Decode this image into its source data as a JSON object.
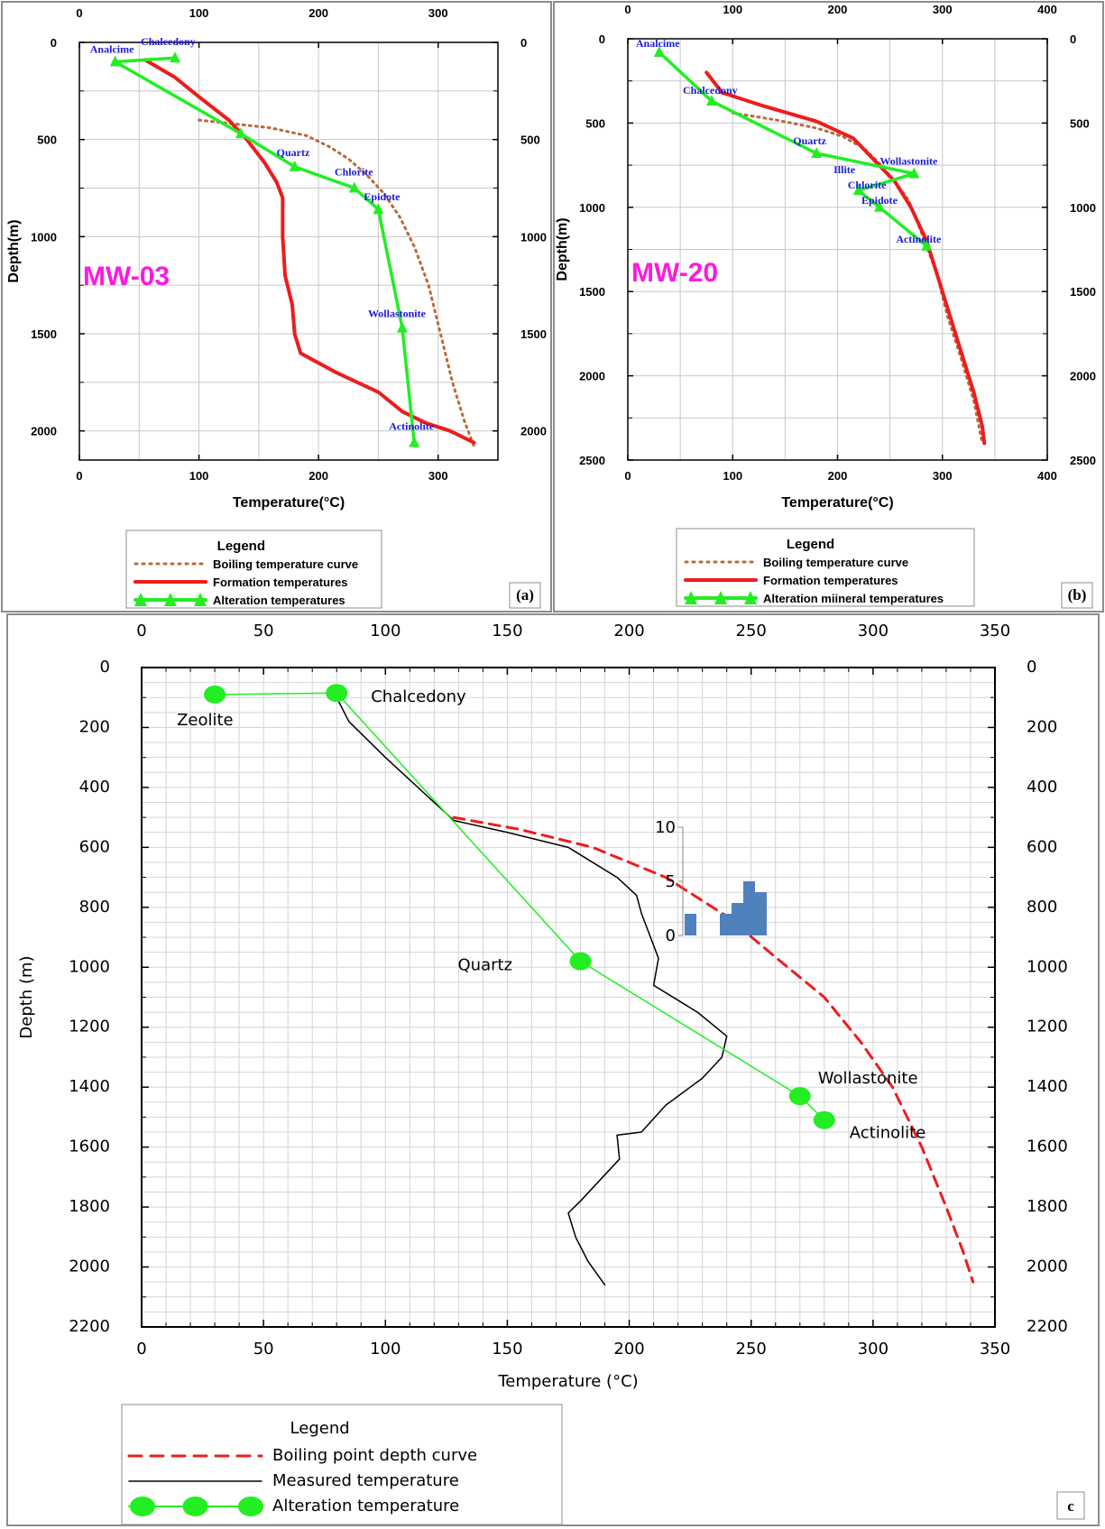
{
  "chart_data": [
    {
      "panel": "(a)",
      "type": "line",
      "well_label": "MW-03",
      "xlabel": "Temperature(°C)",
      "ylabel": "Depth(m)",
      "xlim": [
        0,
        350
      ],
      "ylim": [
        2150,
        0
      ],
      "x_ticks_top": [
        "0",
        "100",
        "200",
        "300"
      ],
      "x_ticks_bottom": [
        "0",
        "100",
        "200",
        "300"
      ],
      "y_ticks": [
        "0",
        "500",
        "1000",
        "1500",
        "2000"
      ],
      "series": [
        {
          "name": "Boiling temperature curve",
          "color": "#b86a3b",
          "style": "dotted",
          "points": [
            [
              100,
              400
            ],
            [
              130,
              420
            ],
            [
              160,
              440
            ],
            [
              190,
              480
            ],
            [
              210,
              540
            ],
            [
              225,
              600
            ],
            [
              240,
              680
            ],
            [
              255,
              780
            ],
            [
              268,
              900
            ],
            [
              280,
              1050
            ],
            [
              292,
              1250
            ],
            [
              302,
              1500
            ],
            [
              312,
              1750
            ],
            [
              322,
              1950
            ],
            [
              330,
              2080
            ]
          ]
        },
        {
          "name": "Formation temperatures",
          "color": "#ee1c1c",
          "style": "solid",
          "points": [
            [
              55,
              90
            ],
            [
              80,
              180
            ],
            [
              100,
              280
            ],
            [
              125,
              400
            ],
            [
              140,
              500
            ],
            [
              155,
              620
            ],
            [
              165,
              720
            ],
            [
              170,
              800
            ],
            [
              170,
              1000
            ],
            [
              172,
              1200
            ],
            [
              178,
              1350
            ],
            [
              180,
              1500
            ],
            [
              185,
              1600
            ],
            [
              215,
              1700
            ],
            [
              250,
              1800
            ],
            [
              270,
              1900
            ],
            [
              290,
              1960
            ],
            [
              310,
              2000
            ],
            [
              330,
              2060
            ]
          ]
        },
        {
          "name": "Alteration temperatures",
          "color": "#22ee22",
          "style": "solid-triangles",
          "points": [
            [
              80,
              80
            ],
            [
              30,
              100
            ],
            [
              135,
              470
            ],
            [
              180,
              640
            ],
            [
              230,
              750
            ],
            [
              250,
              860
            ],
            [
              270,
              1470
            ],
            [
              280,
              2060
            ]
          ]
        }
      ],
      "labels": [
        {
          "text": "Analcime",
          "x": 30,
          "y": 100
        },
        {
          "text": "Chalcedony",
          "x": 80,
          "y": 80
        },
        {
          "text": "Quartz",
          "x": 180,
          "y": 640
        },
        {
          "text": "Chlorite",
          "x": 230,
          "y": 750
        },
        {
          "text": "Epidote",
          "x": 250,
          "y": 860
        },
        {
          "text": "Wollastonite",
          "x": 270,
          "y": 1470
        },
        {
          "text": "Actinolite",
          "x": 280,
          "y": 2060
        }
      ],
      "legend": {
        "title": "Legend",
        "entries": [
          "Boiling temperature curve",
          "Formation temperatures",
          "Alteration temperatures"
        ]
      },
      "panel_label": "(a)"
    },
    {
      "panel": "(b)",
      "type": "line",
      "well_label": "MW-20",
      "xlabel": "Temperature(°C)",
      "ylabel": "Depth(m)",
      "xlim": [
        0,
        400
      ],
      "ylim": [
        2500,
        0
      ],
      "x_ticks_top": [
        "0",
        "100",
        "200",
        "300",
        "400"
      ],
      "x_ticks_bottom": [
        "0",
        "100",
        "200",
        "300",
        "400"
      ],
      "y_ticks": [
        "0",
        "500",
        "1000",
        "1500",
        "2000",
        "2500"
      ],
      "series": [
        {
          "name": "Boiling temperature curve",
          "color": "#b86a3b",
          "style": "dotted",
          "points": [
            [
              100,
              440
            ],
            [
              140,
              480
            ],
            [
              180,
              530
            ],
            [
              205,
              580
            ],
            [
              225,
              650
            ],
            [
              240,
              740
            ],
            [
              255,
              850
            ],
            [
              268,
              960
            ],
            [
              280,
              1150
            ],
            [
              295,
              1400
            ],
            [
              305,
              1650
            ],
            [
              318,
              1900
            ],
            [
              330,
              2150
            ],
            [
              338,
              2400
            ]
          ]
        },
        {
          "name": "Formation temperatures",
          "color": "#ee1c1c",
          "style": "solid",
          "points": [
            [
              75,
              200
            ],
            [
              90,
              320
            ],
            [
              130,
              400
            ],
            [
              180,
              490
            ],
            [
              215,
              590
            ],
            [
              235,
              720
            ],
            [
              255,
              850
            ],
            [
              270,
              1000
            ],
            [
              285,
              1200
            ],
            [
              300,
              1500
            ],
            [
              310,
              1700
            ],
            [
              320,
              1900
            ],
            [
              330,
              2100
            ],
            [
              338,
              2300
            ],
            [
              340,
              2400
            ]
          ]
        },
        {
          "name": "Alteration mineral temperatures",
          "color": "#22ee22",
          "style": "solid-triangles",
          "points": [
            [
              30,
              80
            ],
            [
              80,
              370
            ],
            [
              180,
              680
            ],
            [
              273,
              800
            ],
            [
              220,
              900
            ],
            [
              240,
              1000
            ],
            [
              285,
              1230
            ]
          ]
        }
      ],
      "labels": [
        {
          "text": "Analcime",
          "x": 30,
          "y": 80
        },
        {
          "text": "Chalcedony",
          "x": 80,
          "y": 370
        },
        {
          "text": "Quartz",
          "x": 180,
          "y": 680
        },
        {
          "text": "Wollastonite",
          "x": 273,
          "y": 800
        },
        {
          "text": "Illite",
          "x": 210,
          "y": 840
        },
        {
          "text": "Chlorite",
          "x": 220,
          "y": 900
        },
        {
          "text": "Epidote",
          "x": 240,
          "y": 1000
        },
        {
          "text": "Actinolite",
          "x": 285,
          "y": 1230
        }
      ],
      "legend": {
        "title": "Legend",
        "entries": [
          "Boiling temperature curve",
          "Formation temperatures",
          "Alteration miineral temperatures"
        ]
      },
      "panel_label": "(b)"
    },
    {
      "panel": "c",
      "type": "line",
      "xlabel": "Temperature (°C)",
      "ylabel": "Depth (m)",
      "xlim": [
        0,
        350
      ],
      "ylim": [
        2200,
        0
      ],
      "x_ticks_top": [
        "0",
        "50",
        "100",
        "150",
        "200",
        "250",
        "300",
        "350"
      ],
      "x_ticks_bottom": [
        "0",
        "50",
        "100",
        "150",
        "200",
        "250",
        "300",
        "350"
      ],
      "y_ticks": [
        "0",
        "200",
        "400",
        "600",
        "800",
        "1000",
        "1200",
        "1400",
        "1600",
        "1800",
        "2000",
        "2200"
      ],
      "series": [
        {
          "name": "Boiling point depth curve",
          "color": "#ee1c1c",
          "style": "dashed",
          "points": [
            [
              128,
              500
            ],
            [
              155,
              540
            ],
            [
              185,
              600
            ],
            [
              215,
              700
            ],
            [
              240,
              830
            ],
            [
              262,
              980
            ],
            [
              280,
              1100
            ],
            [
              295,
              1250
            ],
            [
              308,
              1400
            ],
            [
              320,
              1600
            ],
            [
              330,
              1800
            ],
            [
              337,
              1950
            ],
            [
              341,
              2050
            ]
          ]
        },
        {
          "name": "Measured temperature",
          "color": "#000000",
          "style": "solid",
          "points": [
            [
              80,
              100
            ],
            [
              85,
              180
            ],
            [
              100,
              300
            ],
            [
              120,
              450
            ],
            [
              128,
              510
            ],
            [
              150,
              550
            ],
            [
              175,
              600
            ],
            [
              195,
              700
            ],
            [
              203,
              760
            ],
            [
              205,
              820
            ],
            [
              212,
              970
            ],
            [
              210,
              1060
            ],
            [
              228,
              1150
            ],
            [
              240,
              1230
            ],
            [
              238,
              1300
            ],
            [
              230,
              1370
            ],
            [
              215,
              1460
            ],
            [
              205,
              1550
            ],
            [
              195,
              1560
            ],
            [
              196,
              1640
            ],
            [
              180,
              1780
            ],
            [
              175,
              1820
            ],
            [
              178,
              1900
            ],
            [
              183,
              1980
            ],
            [
              190,
              2060
            ]
          ]
        },
        {
          "name": "Alteration temperature",
          "color": "#22ee22",
          "style": "solid-circles",
          "points": [
            [
              30,
              90
            ],
            [
              80,
              85
            ],
            [
              180,
              980
            ],
            [
              270,
              1430
            ],
            [
              280,
              1510
            ]
          ]
        }
      ],
      "labels": [
        {
          "text": "Zeolite",
          "x": 30,
          "y": 90
        },
        {
          "text": "Chalcedony",
          "x": 80,
          "y": 85
        },
        {
          "text": "Quartz",
          "x": 180,
          "y": 980
        },
        {
          "text": "Wollastonite",
          "x": 270,
          "y": 1430
        },
        {
          "text": "Actinolite",
          "x": 280,
          "y": 1510
        }
      ],
      "inset": {
        "type": "bar",
        "y_ticks": [
          "10",
          "5",
          "0"
        ],
        "ylim": [
          0,
          10
        ],
        "bars": [
          2,
          0,
          0,
          2,
          3,
          5,
          4
        ]
      },
      "legend": {
        "title": "Legend",
        "entries": [
          "Boiling point depth curve",
          "Measured temperature",
          "Alteration temperature"
        ]
      },
      "panel_label": "c"
    }
  ]
}
